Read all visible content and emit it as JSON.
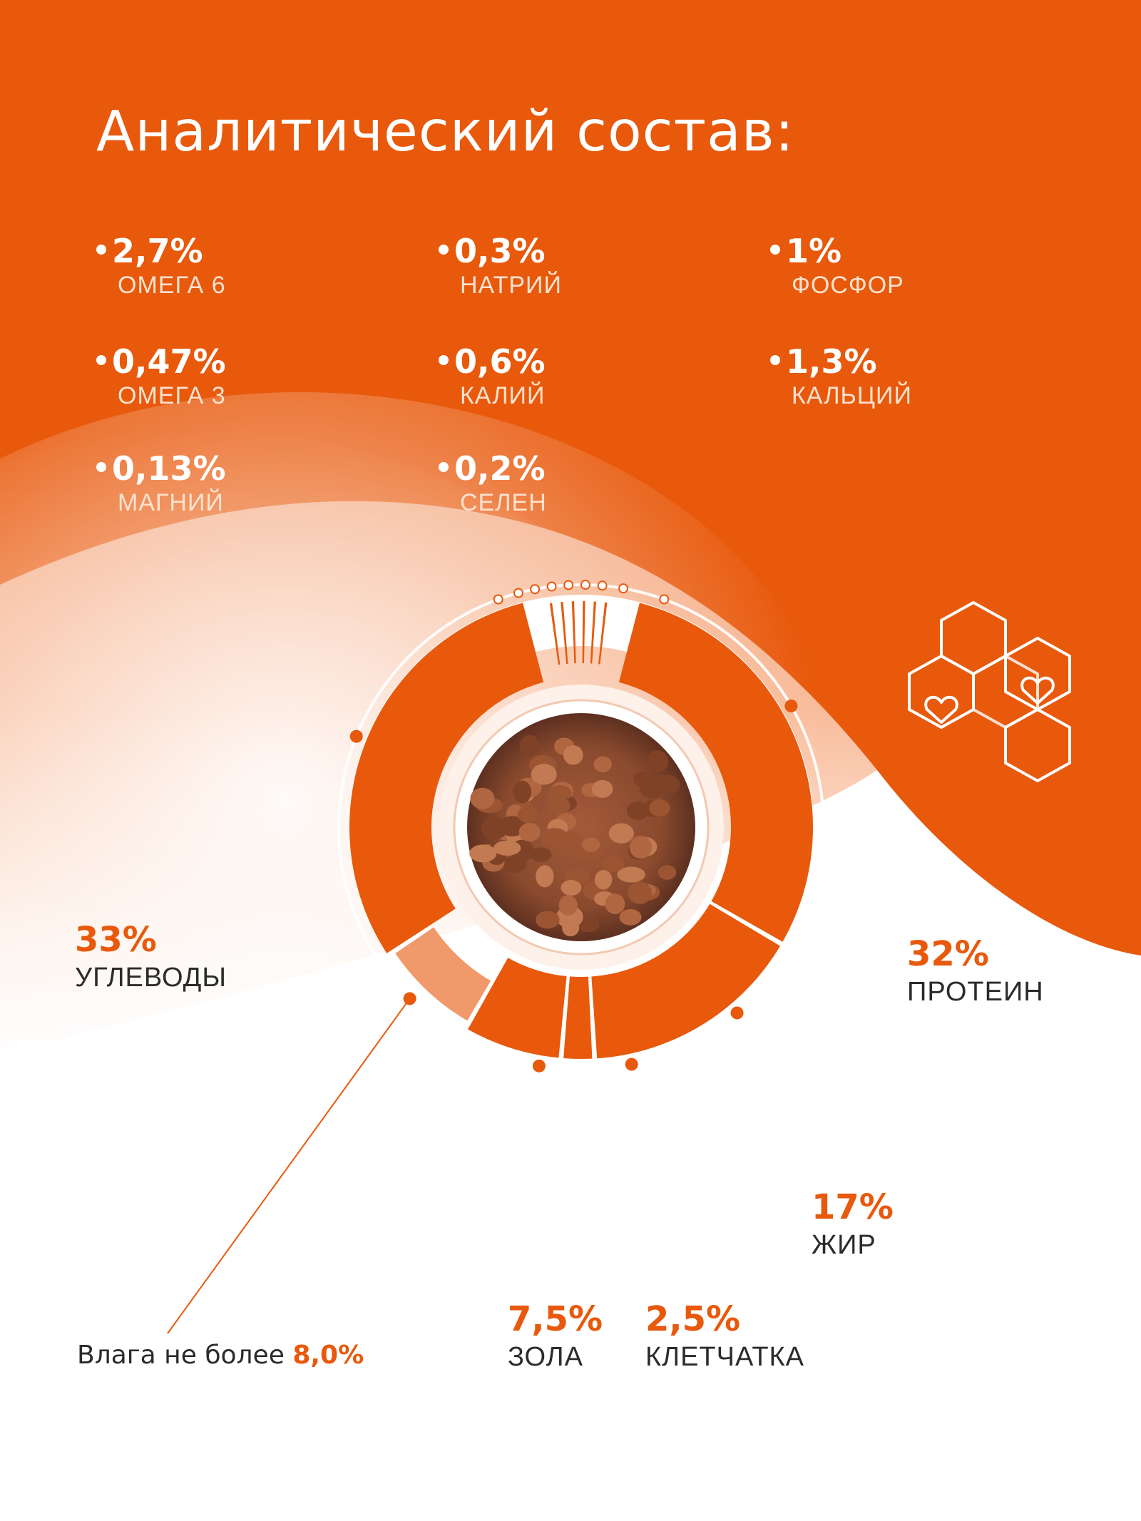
{
  "title": "Аналитический состав:",
  "colors": {
    "accent": "#e8590c",
    "accent_light": "#f09a6c",
    "white": "#ffffff"
  },
  "nutrients": [
    {
      "value": "2,7%",
      "name": "ОМЕГА 6"
    },
    {
      "value": "0,47%",
      "name": "ОМЕГА 3"
    },
    {
      "value": "0,13%",
      "name": "МАГНИЙ"
    },
    {
      "value": "0,3%",
      "name": "НАТРИЙ"
    },
    {
      "value": "0,6%",
      "name": "КАЛИЙ"
    },
    {
      "value": "0,2%",
      "name": "СЕЛЕН"
    },
    {
      "value": "1%",
      "name": "ФОСФОР"
    },
    {
      "value": "1,3%",
      "name": "КАЛЬЦИЙ"
    }
  ],
  "moisture": {
    "text": "Влага не более",
    "value": "8,0%"
  },
  "chart_data": {
    "type": "pie",
    "variant": "donut",
    "series": [
      {
        "name": "ПРОТЕИН",
        "label": "32%",
        "value": 32
      },
      {
        "name": "ЖИР",
        "label": "17%",
        "value": 17
      },
      {
        "name": "КЛЕТЧАТКА",
        "label": "2,5%",
        "value": 2.5
      },
      {
        "name": "ЗОЛА",
        "label": "7,5%",
        "value": 7.5
      },
      {
        "name": "Влага",
        "label": "8,0%",
        "value": 8
      },
      {
        "name": "УГЛЕВОДЫ",
        "label": "33%",
        "value": 33
      }
    ]
  }
}
